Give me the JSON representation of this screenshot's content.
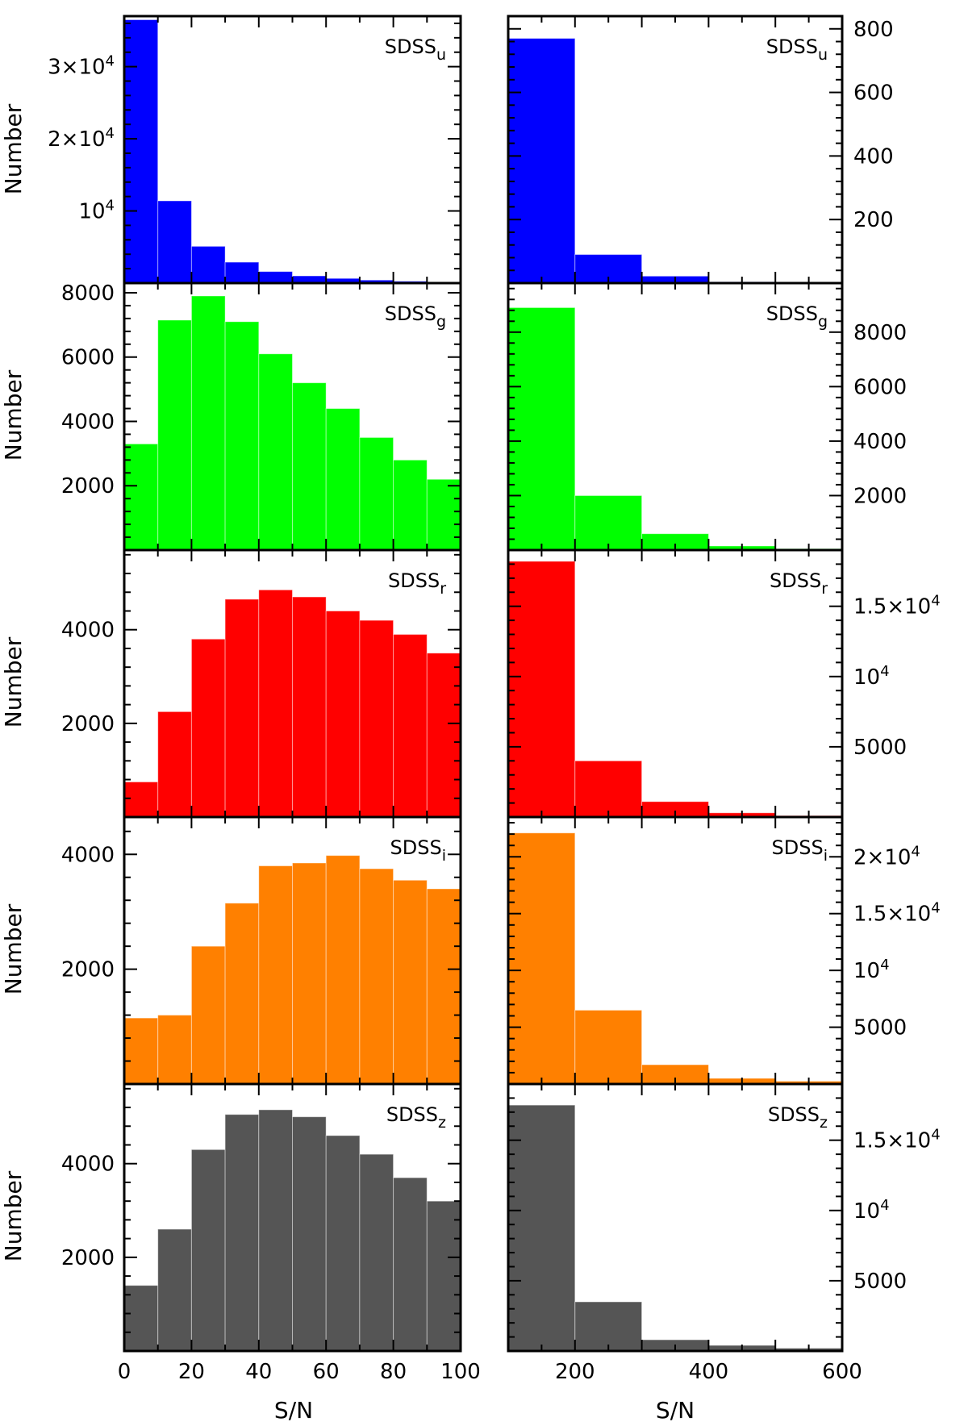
{
  "figure": {
    "x_title": "S/N",
    "y_title": "Number"
  },
  "chart_data": [
    {
      "type": "bar",
      "band": "SDSS_u",
      "label_main": "SDSS",
      "label_sub": "u",
      "color": "#0000ff",
      "xlim": [
        0,
        100
      ],
      "ylim": [
        0,
        37000
      ],
      "bin_width": 10,
      "bin_edges": [
        0,
        10,
        20,
        30,
        40,
        50,
        60,
        70,
        80,
        90
      ],
      "values": [
        36500,
        11400,
        5100,
        2900,
        1600,
        1000,
        650,
        420,
        260,
        150
      ],
      "y_tick_labels": [
        {
          "value": 30000,
          "base": "3×10",
          "exp": "4"
        },
        {
          "value": 20000,
          "base": "2×10",
          "exp": "4"
        },
        {
          "value": 10000,
          "base": "10",
          "exp": "4"
        }
      ]
    },
    {
      "type": "bar",
      "band": "SDSS_u",
      "label_main": "SDSS",
      "label_sub": "u",
      "color": "#0000ff",
      "xlim": [
        100,
        600
      ],
      "ylim": [
        0,
        840
      ],
      "bin_width": 100,
      "bin_edges": [
        100,
        200,
        300,
        400,
        500
      ],
      "values": [
        770,
        90,
        22,
        4,
        2
      ],
      "y_tick_labels": [
        {
          "value": 800,
          "text": "800"
        },
        {
          "value": 600,
          "text": "600"
        },
        {
          "value": 400,
          "text": "400"
        },
        {
          "value": 200,
          "text": "200"
        }
      ]
    },
    {
      "type": "bar",
      "band": "SDSS_g",
      "label_main": "SDSS",
      "label_sub": "g",
      "color": "#00ff00",
      "xlim": [
        0,
        100
      ],
      "ylim": [
        0,
        8300
      ],
      "bin_width": 10,
      "bin_edges": [
        0,
        10,
        20,
        30,
        40,
        50,
        60,
        70,
        80,
        90
      ],
      "values": [
        3300,
        7150,
        7900,
        7100,
        6100,
        5200,
        4400,
        3500,
        2800,
        2200
      ],
      "y_tick_labels": [
        {
          "value": 8000,
          "text": "8000"
        },
        {
          "value": 6000,
          "text": "6000"
        },
        {
          "value": 4000,
          "text": "4000"
        },
        {
          "value": 2000,
          "text": "2000"
        }
      ]
    },
    {
      "type": "bar",
      "band": "SDSS_g",
      "label_main": "SDSS",
      "label_sub": "g",
      "color": "#00ff00",
      "xlim": [
        100,
        600
      ],
      "ylim": [
        0,
        9800
      ],
      "bin_width": 100,
      "bin_edges": [
        100,
        200,
        300,
        400,
        500
      ],
      "values": [
        8900,
        2000,
        600,
        150,
        50
      ],
      "y_tick_labels": [
        {
          "value": 8000,
          "text": "8000"
        },
        {
          "value": 6000,
          "text": "6000"
        },
        {
          "value": 4000,
          "text": "4000"
        },
        {
          "value": 2000,
          "text": "2000"
        }
      ]
    },
    {
      "type": "bar",
      "band": "SDSS_r",
      "label_main": "SDSS",
      "label_sub": "r",
      "color": "#ff0000",
      "xlim": [
        0,
        100
      ],
      "ylim": [
        0,
        5700
      ],
      "bin_width": 10,
      "bin_edges": [
        0,
        10,
        20,
        30,
        40,
        50,
        60,
        70,
        80,
        90
      ],
      "values": [
        750,
        2250,
        3800,
        4650,
        4850,
        4700,
        4400,
        4200,
        3900,
        3500
      ],
      "y_tick_labels": [
        {
          "value": 4000,
          "text": "4000"
        },
        {
          "value": 2000,
          "text": "2000"
        }
      ]
    },
    {
      "type": "bar",
      "band": "SDSS_r",
      "label_main": "SDSS",
      "label_sub": "r",
      "color": "#ff0000",
      "xlim": [
        100,
        600
      ],
      "ylim": [
        0,
        19000
      ],
      "bin_width": 100,
      "bin_edges": [
        100,
        200,
        300,
        400,
        500
      ],
      "values": [
        18200,
        4000,
        1100,
        300,
        100
      ],
      "y_tick_labels": [
        {
          "value": 15000,
          "base": "1.5×10",
          "exp": "4"
        },
        {
          "value": 10000,
          "base": "10",
          "exp": "4"
        },
        {
          "value": 5000,
          "text": "5000"
        }
      ]
    },
    {
      "type": "bar",
      "band": "SDSS_i",
      "label_main": "SDSS",
      "label_sub": "i",
      "color": "#ff8000",
      "xlim": [
        0,
        100
      ],
      "ylim": [
        0,
        4650
      ],
      "bin_width": 10,
      "bin_edges": [
        0,
        10,
        20,
        30,
        40,
        50,
        60,
        70,
        80,
        90
      ],
      "values": [
        1150,
        1200,
        2400,
        3150,
        3800,
        3850,
        3980,
        3750,
        3550,
        3400
      ],
      "y_tick_labels": [
        {
          "value": 4000,
          "text": "4000"
        },
        {
          "value": 2000,
          "text": "2000"
        }
      ]
    },
    {
      "type": "bar",
      "band": "SDSS_i",
      "label_main": "SDSS",
      "label_sub": "i",
      "color": "#ff8000",
      "xlim": [
        100,
        600
      ],
      "ylim": [
        0,
        23500
      ],
      "bin_width": 100,
      "bin_edges": [
        100,
        200,
        300,
        400,
        500
      ],
      "values": [
        22100,
        6500,
        1700,
        500,
        250
      ],
      "y_tick_labels": [
        {
          "value": 20000,
          "base": "2×10",
          "exp": "4"
        },
        {
          "value": 15000,
          "base": "1.5×10",
          "exp": "4"
        },
        {
          "value": 10000,
          "base": "10",
          "exp": "4"
        },
        {
          "value": 5000,
          "text": "5000"
        }
      ]
    },
    {
      "type": "bar",
      "band": "SDSS_z",
      "label_main": "SDSS",
      "label_sub": "z",
      "color": "#555555",
      "xlim": [
        0,
        100
      ],
      "ylim": [
        0,
        5700
      ],
      "bin_width": 10,
      "bin_edges": [
        0,
        10,
        20,
        30,
        40,
        50,
        60,
        70,
        80,
        90
      ],
      "values": [
        1400,
        2600,
        4300,
        5050,
        5150,
        5000,
        4600,
        4200,
        3700,
        3200
      ],
      "y_tick_labels": [
        {
          "value": 4000,
          "text": "4000"
        },
        {
          "value": 2000,
          "text": "2000"
        }
      ]
    },
    {
      "type": "bar",
      "band": "SDSS_z",
      "label_main": "SDSS",
      "label_sub": "z",
      "color": "#555555",
      "xlim": [
        100,
        600
      ],
      "ylim": [
        0,
        19000
      ],
      "bin_width": 100,
      "bin_edges": [
        100,
        200,
        300,
        400,
        500
      ],
      "values": [
        17500,
        3500,
        800,
        400,
        200
      ],
      "y_tick_labels": [
        {
          "value": 15000,
          "base": "1.5×10",
          "exp": "4"
        },
        {
          "value": 10000,
          "base": "10",
          "exp": "4"
        },
        {
          "value": 5000,
          "text": "5000"
        }
      ]
    }
  ],
  "x_tick_labels": {
    "left": [
      "0",
      "20",
      "40",
      "60",
      "80",
      "100"
    ],
    "right": [
      "200",
      "400",
      "600"
    ]
  }
}
